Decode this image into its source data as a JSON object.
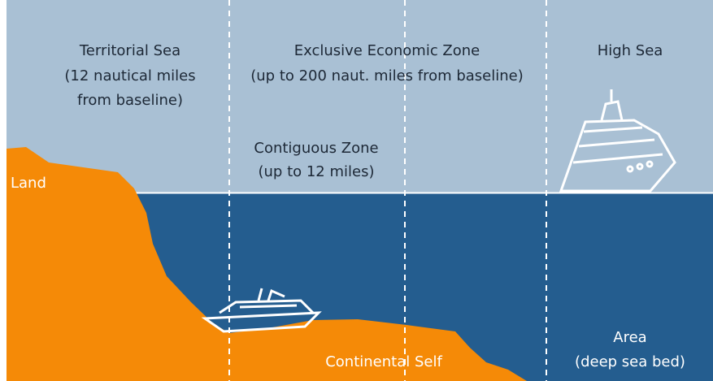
{
  "zones": {
    "territorial_sea": [
      "Territorial Sea",
      "(12 nautical miles",
      "from baseline)"
    ],
    "exclusive_economic_zone": [
      "Exclusive Economic Zone",
      "(up to 200 naut. miles from baseline)"
    ],
    "high_sea": [
      "High Sea"
    ],
    "contiguous_zone": [
      "Contiguous Zone",
      "(up to 12 miles)"
    ],
    "land": [
      "Land"
    ],
    "continental_shelf": [
      "Continental Self"
    ],
    "area": [
      "Area",
      "(deep sea bed)"
    ]
  }
}
